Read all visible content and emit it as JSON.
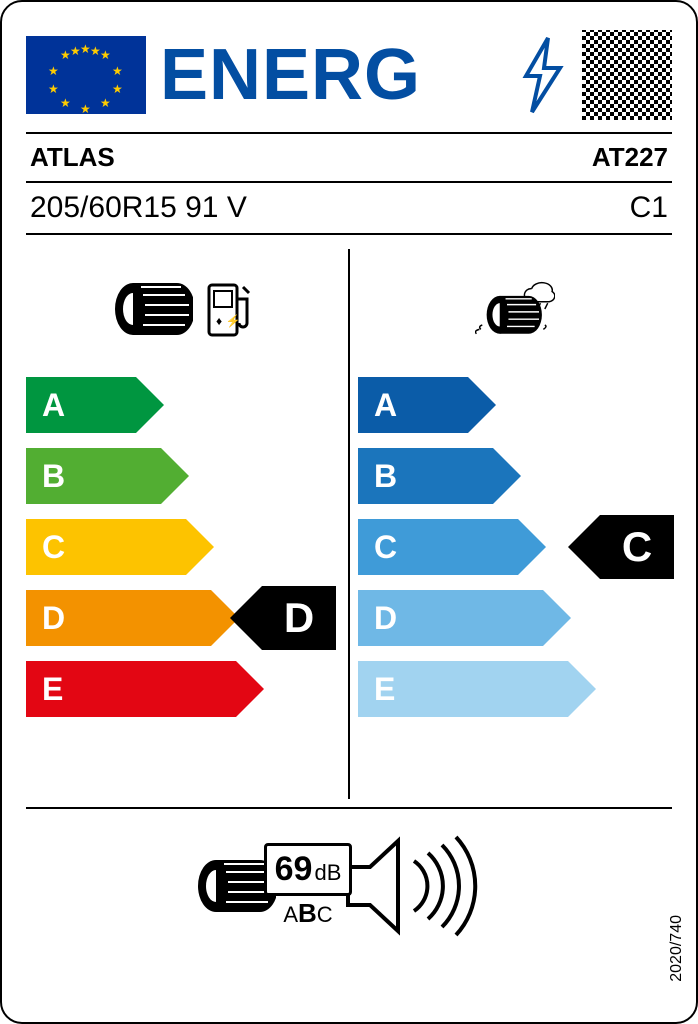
{
  "header": {
    "title": "ENERG",
    "eu_flag_bg": "#003399",
    "eu_star_color": "#ffcc00",
    "title_color": "#034ea2"
  },
  "brand": "ATLAS",
  "model": "AT227",
  "tyre_spec": "205/60R15 91 V",
  "tyre_class": "C1",
  "fuel_efficiency": {
    "grades": [
      "A",
      "B",
      "C",
      "D",
      "E"
    ],
    "colors": [
      "#009640",
      "#52ae32",
      "#fdc300",
      "#f39200",
      "#e30613"
    ],
    "widths": [
      110,
      135,
      160,
      185,
      210
    ],
    "rating": "D",
    "rating_index": 3
  },
  "wet_grip": {
    "grades": [
      "A",
      "B",
      "C",
      "D",
      "E"
    ],
    "colors": [
      "#0b5ca8",
      "#1b75bc",
      "#3f9bd8",
      "#6fb8e6",
      "#a1d3f0"
    ],
    "widths": [
      110,
      135,
      160,
      185,
      210
    ],
    "rating": "C",
    "rating_index": 2
  },
  "noise": {
    "value": "69",
    "unit": "dB",
    "class_letters": [
      "A",
      "B",
      "C"
    ],
    "selected_class": "B"
  },
  "regulation": "2020/740"
}
